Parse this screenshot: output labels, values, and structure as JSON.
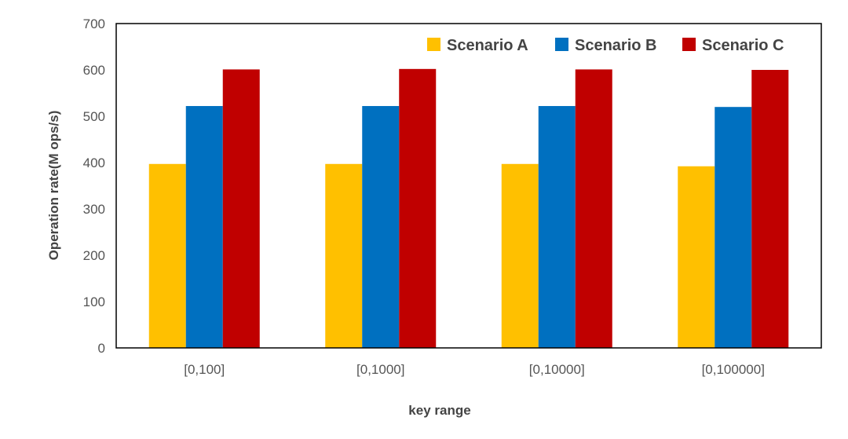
{
  "chart_data": {
    "type": "bar",
    "xlabel": "key range",
    "ylabel": "Operation rate(M ops/s)",
    "ylim": [
      0,
      700
    ],
    "yticks": [
      0,
      100,
      200,
      300,
      400,
      500,
      600,
      700
    ],
    "categories": [
      "[0,100]",
      "[0,1000]",
      "[0,10000]",
      "[0,100000]"
    ],
    "series": [
      {
        "name": "Scenario A",
        "color": "#FFC000",
        "values": [
          397,
          397,
          397,
          392
        ]
      },
      {
        "name": "Scenario B",
        "color": "#0070C0",
        "values": [
          522,
          522,
          522,
          520
        ]
      },
      {
        "name": "Scenario C",
        "color": "#C00000",
        "values": [
          601,
          602,
          601,
          600
        ]
      }
    ],
    "legend": {
      "position": "top-right"
    },
    "grid": false
  }
}
